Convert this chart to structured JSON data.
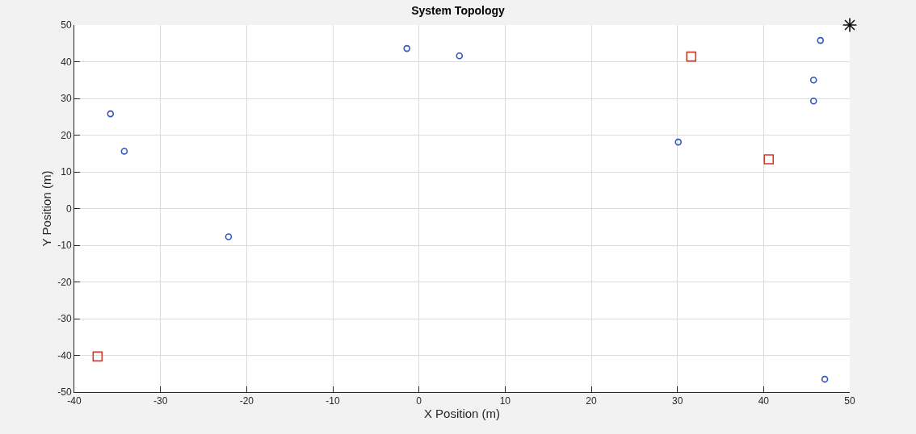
{
  "chart_data": {
    "type": "scatter",
    "title": "System Topology",
    "xlabel": "X Position (m)",
    "ylabel": "Y Position (m)",
    "series": [
      {
        "color": "#3355bb",
        "marker": "circle",
        "x": [
          -35.8,
          -34.2,
          -22.1,
          -1.4,
          4.7,
          30.1,
          46.6,
          45.8,
          45.8,
          47.1
        ],
        "values": [
          25.8,
          15.6,
          -7.7,
          43.6,
          41.6,
          18.1,
          45.8,
          35.0,
          29.3,
          -46.5
        ]
      },
      {
        "color": "#d03a2a",
        "marker": "square",
        "x": [
          -37.3,
          31.6,
          40.6
        ],
        "values": [
          -40.3,
          41.4,
          13.4
        ]
      },
      {
        "color": "#111111",
        "marker": "cross",
        "x": [
          50
        ],
        "values": [
          50
        ]
      }
    ],
    "xlim": [
      -40,
      50
    ],
    "xticks": [
      -40,
      -30,
      -20,
      -10,
      0,
      10,
      20,
      30,
      40,
      50
    ],
    "ylim": [
      -50,
      50
    ],
    "yticks": [
      -50,
      -40,
      -30,
      -20,
      -10,
      0,
      10,
      20,
      30,
      40,
      50
    ],
    "grid": true
  }
}
